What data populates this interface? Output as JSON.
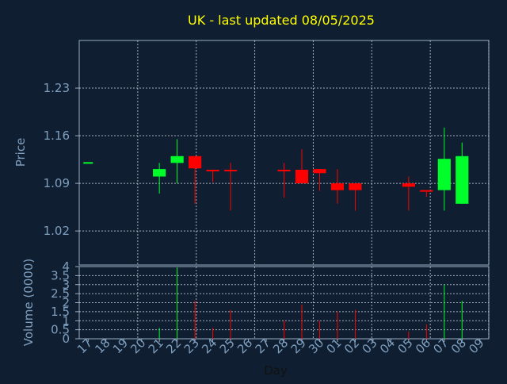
{
  "chart_data": [
    {
      "type": "candlestick",
      "title": "UK - last updated 08/05/2025",
      "ylabel": "Price",
      "ylim": [
        0.97,
        1.3
      ],
      "yticks": [
        1.02,
        1.09,
        1.16,
        1.23
      ],
      "ytick_labels": [
        "1.02",
        "1.09",
        "1.16",
        "1.23"
      ],
      "grid": true,
      "up_color": "#00ff2a",
      "down_color": "#ff0000",
      "candles": [
        {
          "day": "17",
          "open": 1.12,
          "high": 1.12,
          "low": 1.12,
          "close": 1.12
        },
        {
          "day": "21",
          "open": 1.1,
          "high": 1.12,
          "low": 1.075,
          "close": 1.111
        },
        {
          "day": "22",
          "open": 1.12,
          "high": 1.155,
          "low": 1.09,
          "close": 1.13
        },
        {
          "day": "23",
          "open": 1.13,
          "high": 1.13,
          "low": 1.06,
          "close": 1.112
        },
        {
          "day": "24",
          "open": 1.11,
          "high": 1.11,
          "low": 1.092,
          "close": 1.108
        },
        {
          "day": "25",
          "open": 1.11,
          "high": 1.12,
          "low": 1.05,
          "close": 1.108
        },
        {
          "day": "28",
          "open": 1.11,
          "high": 1.12,
          "low": 1.069,
          "close": 1.108
        },
        {
          "day": "29",
          "open": 1.11,
          "high": 1.14,
          "low": 1.09,
          "close": 1.09
        },
        {
          "day": "30",
          "open": 1.111,
          "high": 1.111,
          "low": 1.079,
          "close": 1.105
        },
        {
          "day": "01",
          "open": 1.09,
          "high": 1.111,
          "low": 1.06,
          "close": 1.08
        },
        {
          "day": "02",
          "open": 1.09,
          "high": 1.09,
          "low": 1.05,
          "close": 1.08
        },
        {
          "day": "05",
          "open": 1.09,
          "high": 1.1,
          "low": 1.05,
          "close": 1.085
        },
        {
          "day": "06",
          "open": 1.08,
          "high": 1.08,
          "low": 1.07,
          "close": 1.078
        },
        {
          "day": "07",
          "open": 1.08,
          "high": 1.172,
          "low": 1.05,
          "close": 1.126
        },
        {
          "day": "08",
          "open": 1.06,
          "high": 1.15,
          "low": 1.06,
          "close": 1.13
        }
      ]
    },
    {
      "type": "bar",
      "ylabel": "Volume (0000)",
      "xlabel": "Day",
      "ylim": [
        0,
        4
      ],
      "yticks": [
        0,
        0.5,
        1,
        1.5,
        2,
        2.5,
        3,
        3.5,
        4
      ],
      "ytick_labels": [
        "0",
        "0.5",
        "1",
        "1.5",
        "2",
        "2.5",
        "3",
        "3.5",
        "4"
      ],
      "categories": [
        "17",
        "18",
        "19",
        "20",
        "21",
        "22",
        "23",
        "24",
        "25",
        "26",
        "27",
        "28",
        "29",
        "30",
        "01",
        "02",
        "03",
        "04",
        "05",
        "06",
        "07",
        "08",
        "09"
      ],
      "grid": true,
      "bars": [
        {
          "day": "21",
          "value": 0.6,
          "direction": "up"
        },
        {
          "day": "22",
          "value": 3.95,
          "direction": "up"
        },
        {
          "day": "23",
          "value": 2.1,
          "direction": "down"
        },
        {
          "day": "24",
          "value": 0.6,
          "direction": "down"
        },
        {
          "day": "25",
          "value": 1.6,
          "direction": "down"
        },
        {
          "day": "28",
          "value": 1.0,
          "direction": "down"
        },
        {
          "day": "29",
          "value": 1.9,
          "direction": "down"
        },
        {
          "day": "30",
          "value": 1.0,
          "direction": "down"
        },
        {
          "day": "01",
          "value": 1.5,
          "direction": "down"
        },
        {
          "day": "02",
          "value": 1.6,
          "direction": "down"
        },
        {
          "day": "05",
          "value": 0.4,
          "direction": "down"
        },
        {
          "day": "06",
          "value": 0.8,
          "direction": "down"
        },
        {
          "day": "07",
          "value": 3.0,
          "direction": "up"
        },
        {
          "day": "08",
          "value": 2.1,
          "direction": "up"
        }
      ]
    }
  ],
  "colors": {
    "background": "#0f1e30",
    "axis_text": "#7f9fbf",
    "title": "#ffff00",
    "frame": "#9aaec2",
    "grid": "#c8d4e0"
  }
}
